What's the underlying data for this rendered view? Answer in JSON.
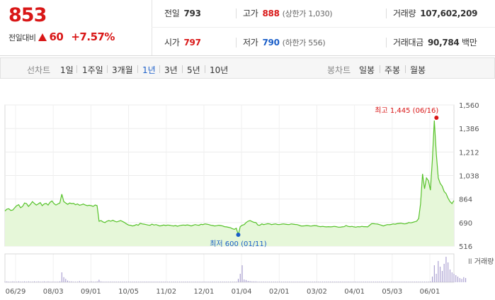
{
  "quote": {
    "current_price": "853",
    "change_label": "전일대비",
    "change_amount": "60",
    "change_percent": "+7.57%",
    "prev_close_label": "전일",
    "prev_close": "793",
    "high_label": "고가",
    "high": "888",
    "upper_limit": "(상한가 1,030)",
    "volume_label": "거래량",
    "volume": "107,602,209",
    "open_label": "시가",
    "open": "797",
    "low_label": "저가",
    "low": "790",
    "lower_limit": "(하한가 556)",
    "amount_label": "거래대금",
    "amount": "90,784",
    "amount_unit": "백만"
  },
  "colors": {
    "up": "#d91717",
    "down": "#1a5ec8",
    "line": "#56c229",
    "fill": "#e6f7d9"
  },
  "toolbar": {
    "line_chart_label": "선차트",
    "periods": [
      "1일",
      "1주일",
      "3개월",
      "1년",
      "3년",
      "5년",
      "10년"
    ],
    "selected_period": "1년",
    "candle_label": "봉차트",
    "candle_periods": [
      "일봉",
      "주봉",
      "월봉"
    ]
  },
  "chart_data": {
    "type": "line",
    "y_ticks": [
      "1,560",
      "1,386",
      "1,212",
      "1,038",
      "864",
      "690",
      "516"
    ],
    "ylim": [
      516,
      1560
    ],
    "x_ticks": [
      "06/29",
      "08/03",
      "09/01",
      "10/05",
      "11/02",
      "12/01",
      "01/04",
      "02/01",
      "03/02",
      "04/01",
      "05/03",
      "06/01"
    ],
    "max_label": "최고 1,445 (06/16)",
    "min_label": "최저 600 (01/11)",
    "volume_label": "거래량",
    "series": [
      {
        "values": [
          775,
          790,
          792,
          780,
          783,
          800,
          815,
          822,
          800,
          810,
          835,
          830,
          810,
          825,
          845,
          832,
          820,
          828,
          838,
          815,
          828,
          832,
          820,
          840,
          850,
          830,
          820,
          828,
          835,
          900,
          845,
          835,
          825,
          835,
          830,
          832,
          822,
          828,
          818,
          822,
          827,
          820,
          815,
          818,
          815,
          810,
          820,
          815,
          700,
          705,
          695,
          690,
          700,
          705,
          700,
          707,
          700,
          695,
          700,
          705,
          698,
          690,
          680,
          672,
          670,
          665,
          668,
          675,
          670,
          685,
          680,
          678,
          675,
          672,
          670,
          678,
          672,
          675,
          670,
          665,
          668,
          672,
          668,
          672,
          670,
          667,
          665,
          668,
          663,
          667,
          670,
          672,
          670,
          673,
          670,
          665,
          670,
          675,
          672,
          670,
          677,
          675,
          680,
          678,
          675,
          670,
          668,
          665,
          667,
          670,
          668,
          665,
          660,
          658,
          655,
          652,
          645,
          640,
          648,
          600,
          660,
          670,
          675,
          690,
          700,
          705,
          698,
          692,
          690,
          672,
          670,
          680,
          675,
          678,
          682,
          680,
          675,
          678,
          680,
          676,
          675,
          678,
          680,
          678,
          676,
          675,
          680,
          678,
          676,
          675,
          670,
          665,
          665,
          666,
          668,
          666,
          664,
          666,
          668,
          666,
          662,
          660,
          662,
          660,
          658,
          660,
          658,
          660,
          662,
          660,
          656,
          656,
          658,
          660,
          668,
          662,
          660,
          662,
          658,
          656,
          660,
          658,
          662,
          660,
          660,
          658,
          670,
          682,
          682,
          680,
          679,
          675,
          670,
          665,
          670,
          675,
          674,
          676,
          680,
          678,
          682,
          684,
          686,
          682,
          680,
          684,
          690,
          688,
          692,
          696,
          700,
          720,
          830,
          1050,
          940,
          1020,
          1000,
          930,
          1150,
          1445,
          1200,
          1020,
          980,
          960,
          920,
          905,
          870,
          845,
          830,
          853
        ]
      }
    ],
    "volume_series": [
      2,
      3,
      2,
      2,
      3,
      2,
      2,
      3,
      2,
      2,
      3,
      2,
      3,
      2,
      2,
      3,
      2,
      3,
      2,
      2,
      3,
      2,
      3,
      2,
      2,
      2,
      2,
      2,
      3,
      35,
      18,
      12,
      6,
      3,
      3,
      2,
      2,
      2,
      4,
      2,
      2,
      2,
      2,
      2,
      3,
      2,
      2,
      3,
      9,
      3,
      2,
      2,
      2,
      2,
      2,
      2,
      2,
      2,
      2,
      2,
      2,
      2,
      2,
      2,
      2,
      2,
      2,
      2,
      2,
      2,
      2,
      2,
      2,
      2,
      2,
      2,
      2,
      2,
      2,
      2,
      2,
      2,
      2,
      2,
      2,
      2,
      2,
      2,
      2,
      2,
      2,
      2,
      2,
      2,
      2,
      2,
      2,
      2,
      2,
      2,
      2,
      2,
      2,
      2,
      2,
      2,
      2,
      2,
      2,
      2,
      2,
      2,
      2,
      2,
      2,
      2,
      2,
      2,
      2,
      12,
      30,
      60,
      10,
      8,
      5,
      4,
      3,
      3,
      3,
      2,
      2,
      2,
      2,
      2,
      2,
      2,
      2,
      2,
      2,
      2,
      2,
      2,
      2,
      2,
      2,
      2,
      2,
      2,
      2,
      2,
      2,
      2,
      2,
      2,
      2,
      2,
      2,
      2,
      2,
      2,
      2,
      2,
      2,
      2,
      2,
      2,
      2,
      2,
      2,
      2,
      2,
      2,
      2,
      2,
      2,
      2,
      2,
      2,
      2,
      2,
      2,
      2,
      2,
      2,
      2,
      2,
      2,
      2,
      2,
      2,
      2,
      2,
      2,
      2,
      2,
      2,
      2,
      2,
      2,
      2,
      2,
      2,
      2,
      2,
      2,
      2,
      2,
      2,
      2,
      2,
      2,
      2,
      2,
      2,
      2,
      2,
      2,
      3,
      20,
      60,
      30,
      75,
      55,
      40,
      65,
      90,
      70,
      45,
      35,
      30,
      25,
      20,
      15,
      12,
      18,
      15
    ]
  }
}
